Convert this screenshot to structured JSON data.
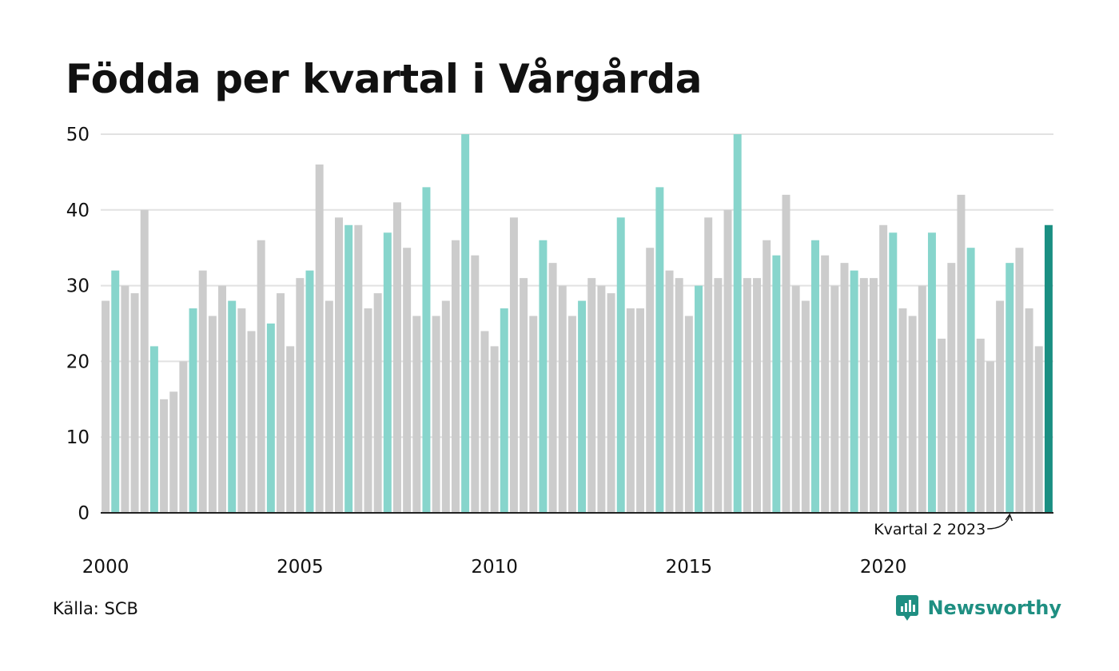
{
  "title": "Födda per kvartal i Vårgårda",
  "source": "Källa: SCB",
  "brand": "Newsworthy",
  "annotation": "Kvartal 2 2023",
  "colors": {
    "q2": "#87d5cc",
    "other": "#cccccc",
    "latest": "#1a8f82",
    "grid": "#e2e2e2",
    "axis": "#222222",
    "brand": "#1f8f82"
  },
  "chart_data": {
    "type": "bar",
    "x_tick_labels": [
      "2000",
      "2005",
      "2010",
      "2015",
      "2020"
    ],
    "y_ticks": [
      0,
      10,
      20,
      30,
      40,
      50
    ],
    "ylim": [
      0,
      50
    ],
    "grid": true,
    "highlight": "Kvartal 2 each year; latest quarter darker",
    "categories": [
      "2000 K1",
      "2000 K2",
      "2000 K3",
      "2000 K4",
      "2001 K1",
      "2001 K2",
      "2001 K3",
      "2001 K4",
      "2002 K1",
      "2002 K2",
      "2002 K3",
      "2002 K4",
      "2003 K1",
      "2003 K2",
      "2003 K3",
      "2003 K4",
      "2004 K1",
      "2004 K2",
      "2004 K3",
      "2004 K4",
      "2005 K1",
      "2005 K2",
      "2005 K3",
      "2005 K4",
      "2006 K1",
      "2006 K2",
      "2006 K3",
      "2006 K4",
      "2007 K1",
      "2007 K2",
      "2007 K3",
      "2007 K4",
      "2008 K1",
      "2008 K2",
      "2008 K3",
      "2008 K4",
      "2009 K1",
      "2009 K2",
      "2009 K3",
      "2009 K4",
      "2010 K1",
      "2010 K2",
      "2010 K3",
      "2010 K4",
      "2011 K1",
      "2011 K2",
      "2011 K3",
      "2011 K4",
      "2012 K1",
      "2012 K2",
      "2012 K3",
      "2012 K4",
      "2013 K1",
      "2013 K2",
      "2013 K3",
      "2013 K4",
      "2014 K1",
      "2014 K2",
      "2014 K3",
      "2014 K4",
      "2015 K1",
      "2015 K2",
      "2015 K3",
      "2015 K4",
      "2016 K1",
      "2016 K2",
      "2016 K3",
      "2016 K4",
      "2017 K1",
      "2017 K2",
      "2017 K3",
      "2017 K4",
      "2018 K1",
      "2018 K2",
      "2018 K3",
      "2018 K4",
      "2019 K1",
      "2019 K2",
      "2019 K3",
      "2019 K4",
      "2020 K1",
      "2020 K2",
      "2020 K3",
      "2020 K4",
      "2021 K1",
      "2021 K2",
      "2021 K3",
      "2021 K4",
      "2022 K1",
      "2022 K2",
      "2022 K3",
      "2022 K4",
      "2023 K1",
      "2023 K2",
      "2023 K3",
      "2023 K4",
      "2024 K1",
      "2024 K2"
    ],
    "values": [
      28,
      32,
      30,
      29,
      40,
      22,
      15,
      16,
      20,
      27,
      32,
      26,
      30,
      28,
      27,
      24,
      36,
      25,
      29,
      22,
      31,
      32,
      46,
      28,
      39,
      38,
      38,
      27,
      29,
      37,
      41,
      35,
      26,
      43,
      26,
      28,
      36,
      50,
      34,
      24,
      22,
      27,
      39,
      31,
      26,
      36,
      33,
      30,
      26,
      28,
      31,
      30,
      29,
      39,
      27,
      27,
      35,
      43,
      32,
      31,
      26,
      30,
      39,
      31,
      40,
      50,
      31,
      31,
      36,
      34,
      42,
      30,
      28,
      36,
      34,
      30,
      33,
      32,
      31,
      31,
      38,
      37,
      27,
      26,
      30,
      37,
      23,
      33,
      42,
      35,
      23,
      20,
      28,
      33,
      35,
      27,
      22,
      38
    ]
  }
}
